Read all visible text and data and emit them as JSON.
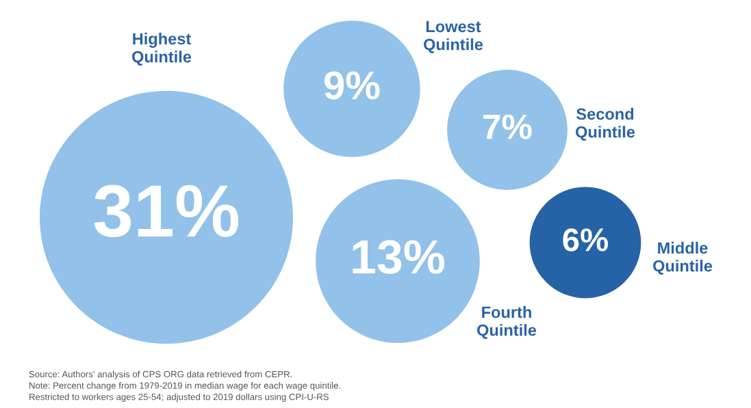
{
  "chart_data": {
    "type": "other",
    "categories": [
      "Highest\nQuintile",
      "Lowest\nQuintile",
      "Second\nQuintile",
      "Fourth\nQuintile",
      "Middle\nQuintile"
    ],
    "values": [
      31,
      9,
      7,
      13,
      6
    ],
    "value_labels": [
      "31%",
      "9%",
      "7%",
      "13%",
      "6%"
    ],
    "colors": [
      "#92c1e9",
      "#92c1e9",
      "#92c1e9",
      "#92c1e9",
      "#2563a6"
    ],
    "annotations": [
      "Source: Authors' analysis of CPS ORG data retrieved from CEPR.\nNote: Percent change from 1979-2019 in median wage for each wage quintile.\nRestricted to workers ages 25-54; adjusted to 2019 dollars using CPI-U-RS"
    ]
  }
}
